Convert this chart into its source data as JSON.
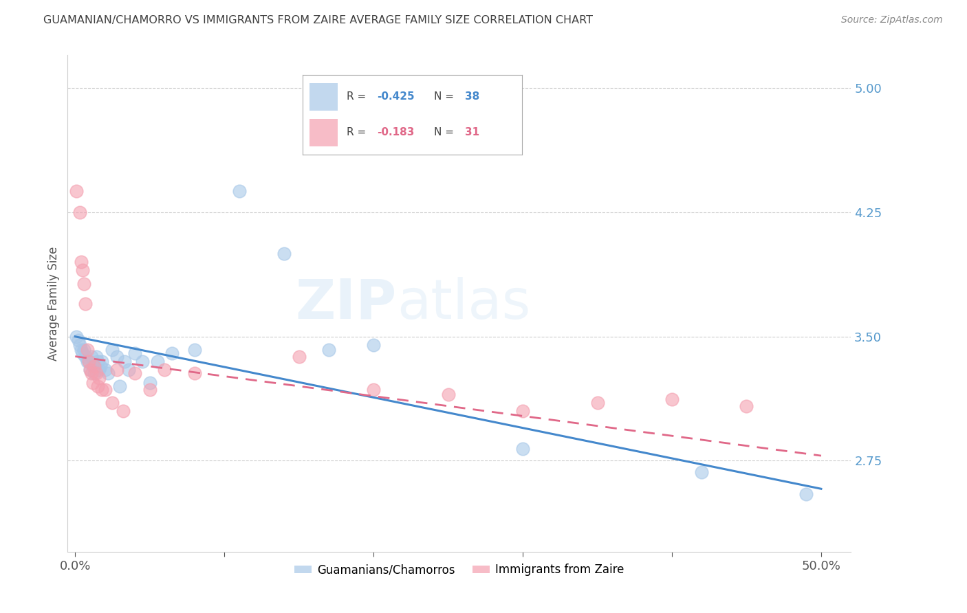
{
  "title": "GUAMANIAN/CHAMORRO VS IMMIGRANTS FROM ZAIRE AVERAGE FAMILY SIZE CORRELATION CHART",
  "source": "Source: ZipAtlas.com",
  "ylabel": "Average Family Size",
  "ylim": [
    2.2,
    5.2
  ],
  "xlim": [
    -0.005,
    0.52
  ],
  "yticks": [
    2.75,
    3.5,
    4.25,
    5.0
  ],
  "xticks": [
    0.0,
    0.1,
    0.2,
    0.3,
    0.4,
    0.5
  ],
  "xtick_labels": [
    "0.0%",
    "",
    "",
    "",
    "",
    "50.0%"
  ],
  "blue_color": "#a8c8e8",
  "pink_color": "#f4a0b0",
  "line_blue": "#4488cc",
  "line_pink": "#e06888",
  "title_color": "#404040",
  "axis_label_color": "#555555",
  "tick_color": "#5599cc",
  "watermark_zip": "ZIP",
  "watermark_atlas": "atlas",
  "legend_r1_label": "R = ",
  "legend_r1_val": "-0.425",
  "legend_n1_label": "N = ",
  "legend_n1_val": "38",
  "legend_r2_label": "R = ",
  "legend_r2_val": "-0.183",
  "legend_n2_label": "N = ",
  "legend_n2_val": "31",
  "legend1_label": "Guamanians/Chamorros",
  "legend2_label": "Immigrants from Zaire",
  "blue_x": [
    0.001,
    0.002,
    0.003,
    0.004,
    0.005,
    0.006,
    0.007,
    0.008,
    0.009,
    0.01,
    0.011,
    0.012,
    0.013,
    0.014,
    0.015,
    0.016,
    0.017,
    0.018,
    0.02,
    0.022,
    0.025,
    0.028,
    0.03,
    0.033,
    0.036,
    0.04,
    0.045,
    0.05,
    0.055,
    0.065,
    0.08,
    0.11,
    0.14,
    0.17,
    0.2,
    0.3,
    0.42,
    0.49
  ],
  "blue_y": [
    3.5,
    3.48,
    3.45,
    3.42,
    3.4,
    3.42,
    3.38,
    3.35,
    3.35,
    3.3,
    3.38,
    3.32,
    3.28,
    3.38,
    3.35,
    3.3,
    3.32,
    3.35,
    3.3,
    3.28,
    3.42,
    3.38,
    3.2,
    3.35,
    3.3,
    3.4,
    3.35,
    3.22,
    3.35,
    3.4,
    3.42,
    4.38,
    4.0,
    3.42,
    3.45,
    2.82,
    2.68,
    2.55
  ],
  "pink_x": [
    0.001,
    0.003,
    0.004,
    0.005,
    0.006,
    0.007,
    0.008,
    0.009,
    0.01,
    0.011,
    0.012,
    0.013,
    0.014,
    0.015,
    0.016,
    0.018,
    0.02,
    0.025,
    0.028,
    0.032,
    0.04,
    0.05,
    0.06,
    0.08,
    0.15,
    0.2,
    0.25,
    0.3,
    0.35,
    0.4,
    0.45
  ],
  "pink_y": [
    4.38,
    4.25,
    3.95,
    3.9,
    3.82,
    3.7,
    3.42,
    3.35,
    3.3,
    3.28,
    3.22,
    3.32,
    3.28,
    3.2,
    3.25,
    3.18,
    3.18,
    3.1,
    3.3,
    3.05,
    3.28,
    3.18,
    3.3,
    3.28,
    3.38,
    3.18,
    3.15,
    3.05,
    3.1,
    3.12,
    3.08
  ]
}
